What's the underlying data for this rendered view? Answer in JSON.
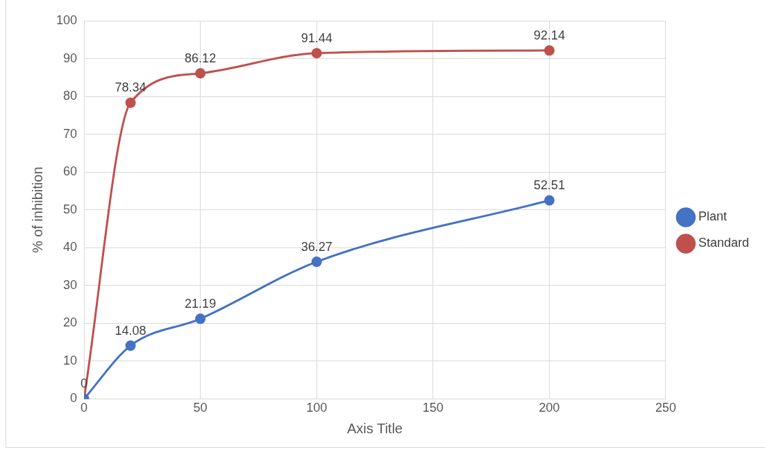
{
  "chart_data": {
    "type": "line",
    "xlabel": "Axis Title",
    "ylabel": "% of inhibition",
    "x": [
      0,
      20,
      50,
      100,
      200
    ],
    "series": [
      {
        "name": "Plant",
        "color": "#4472c4",
        "values": [
          0,
          14.08,
          21.19,
          36.27,
          52.51
        ],
        "value_labels": [
          null,
          "14.08",
          "21.19",
          "36.27",
          "52.51"
        ]
      },
      {
        "name": "Standard",
        "color": "#c0504d",
        "values": [
          0,
          78.34,
          86.12,
          91.44,
          92.14
        ],
        "value_labels": [
          "0",
          "78.34",
          "86.12",
          "91.44",
          "92.14"
        ]
      }
    ],
    "xlim": [
      0,
      250
    ],
    "xticks": [
      0,
      50,
      100,
      150,
      200,
      250
    ],
    "ylim": [
      0,
      100
    ],
    "yticks": [
      0,
      10,
      20,
      30,
      40,
      50,
      60,
      70,
      80,
      90,
      100
    ],
    "grid": true,
    "legend": "right",
    "marker": "circle",
    "line_style": "solid"
  }
}
